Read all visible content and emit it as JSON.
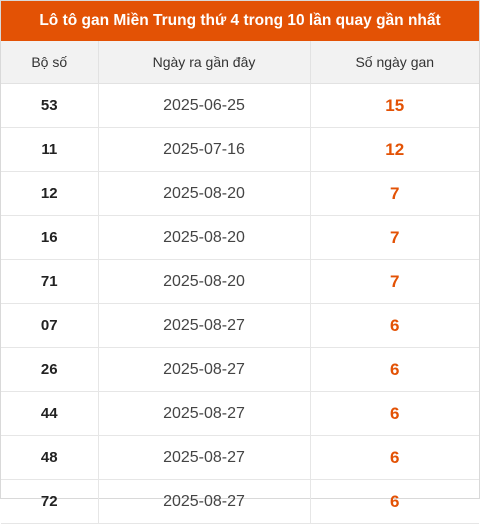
{
  "title": "Lô tô gan Miền Trung thứ 4 trong 10 lần quay gần nhất",
  "accent_color": "#e35205",
  "headers": [
    "Bộ số",
    "Ngày ra gần đây",
    "Số ngày gan"
  ],
  "rows": [
    {
      "number": "53",
      "date": "2025-06-25",
      "days": "15"
    },
    {
      "number": "11",
      "date": "2025-07-16",
      "days": "12"
    },
    {
      "number": "12",
      "date": "2025-08-20",
      "days": "7"
    },
    {
      "number": "16",
      "date": "2025-08-20",
      "days": "7"
    },
    {
      "number": "71",
      "date": "2025-08-20",
      "days": "7"
    },
    {
      "number": "07",
      "date": "2025-08-27",
      "days": "6"
    },
    {
      "number": "26",
      "date": "2025-08-27",
      "days": "6"
    },
    {
      "number": "44",
      "date": "2025-08-27",
      "days": "6"
    },
    {
      "number": "48",
      "date": "2025-08-27",
      "days": "6"
    },
    {
      "number": "72",
      "date": "2025-08-27",
      "days": "6"
    }
  ]
}
